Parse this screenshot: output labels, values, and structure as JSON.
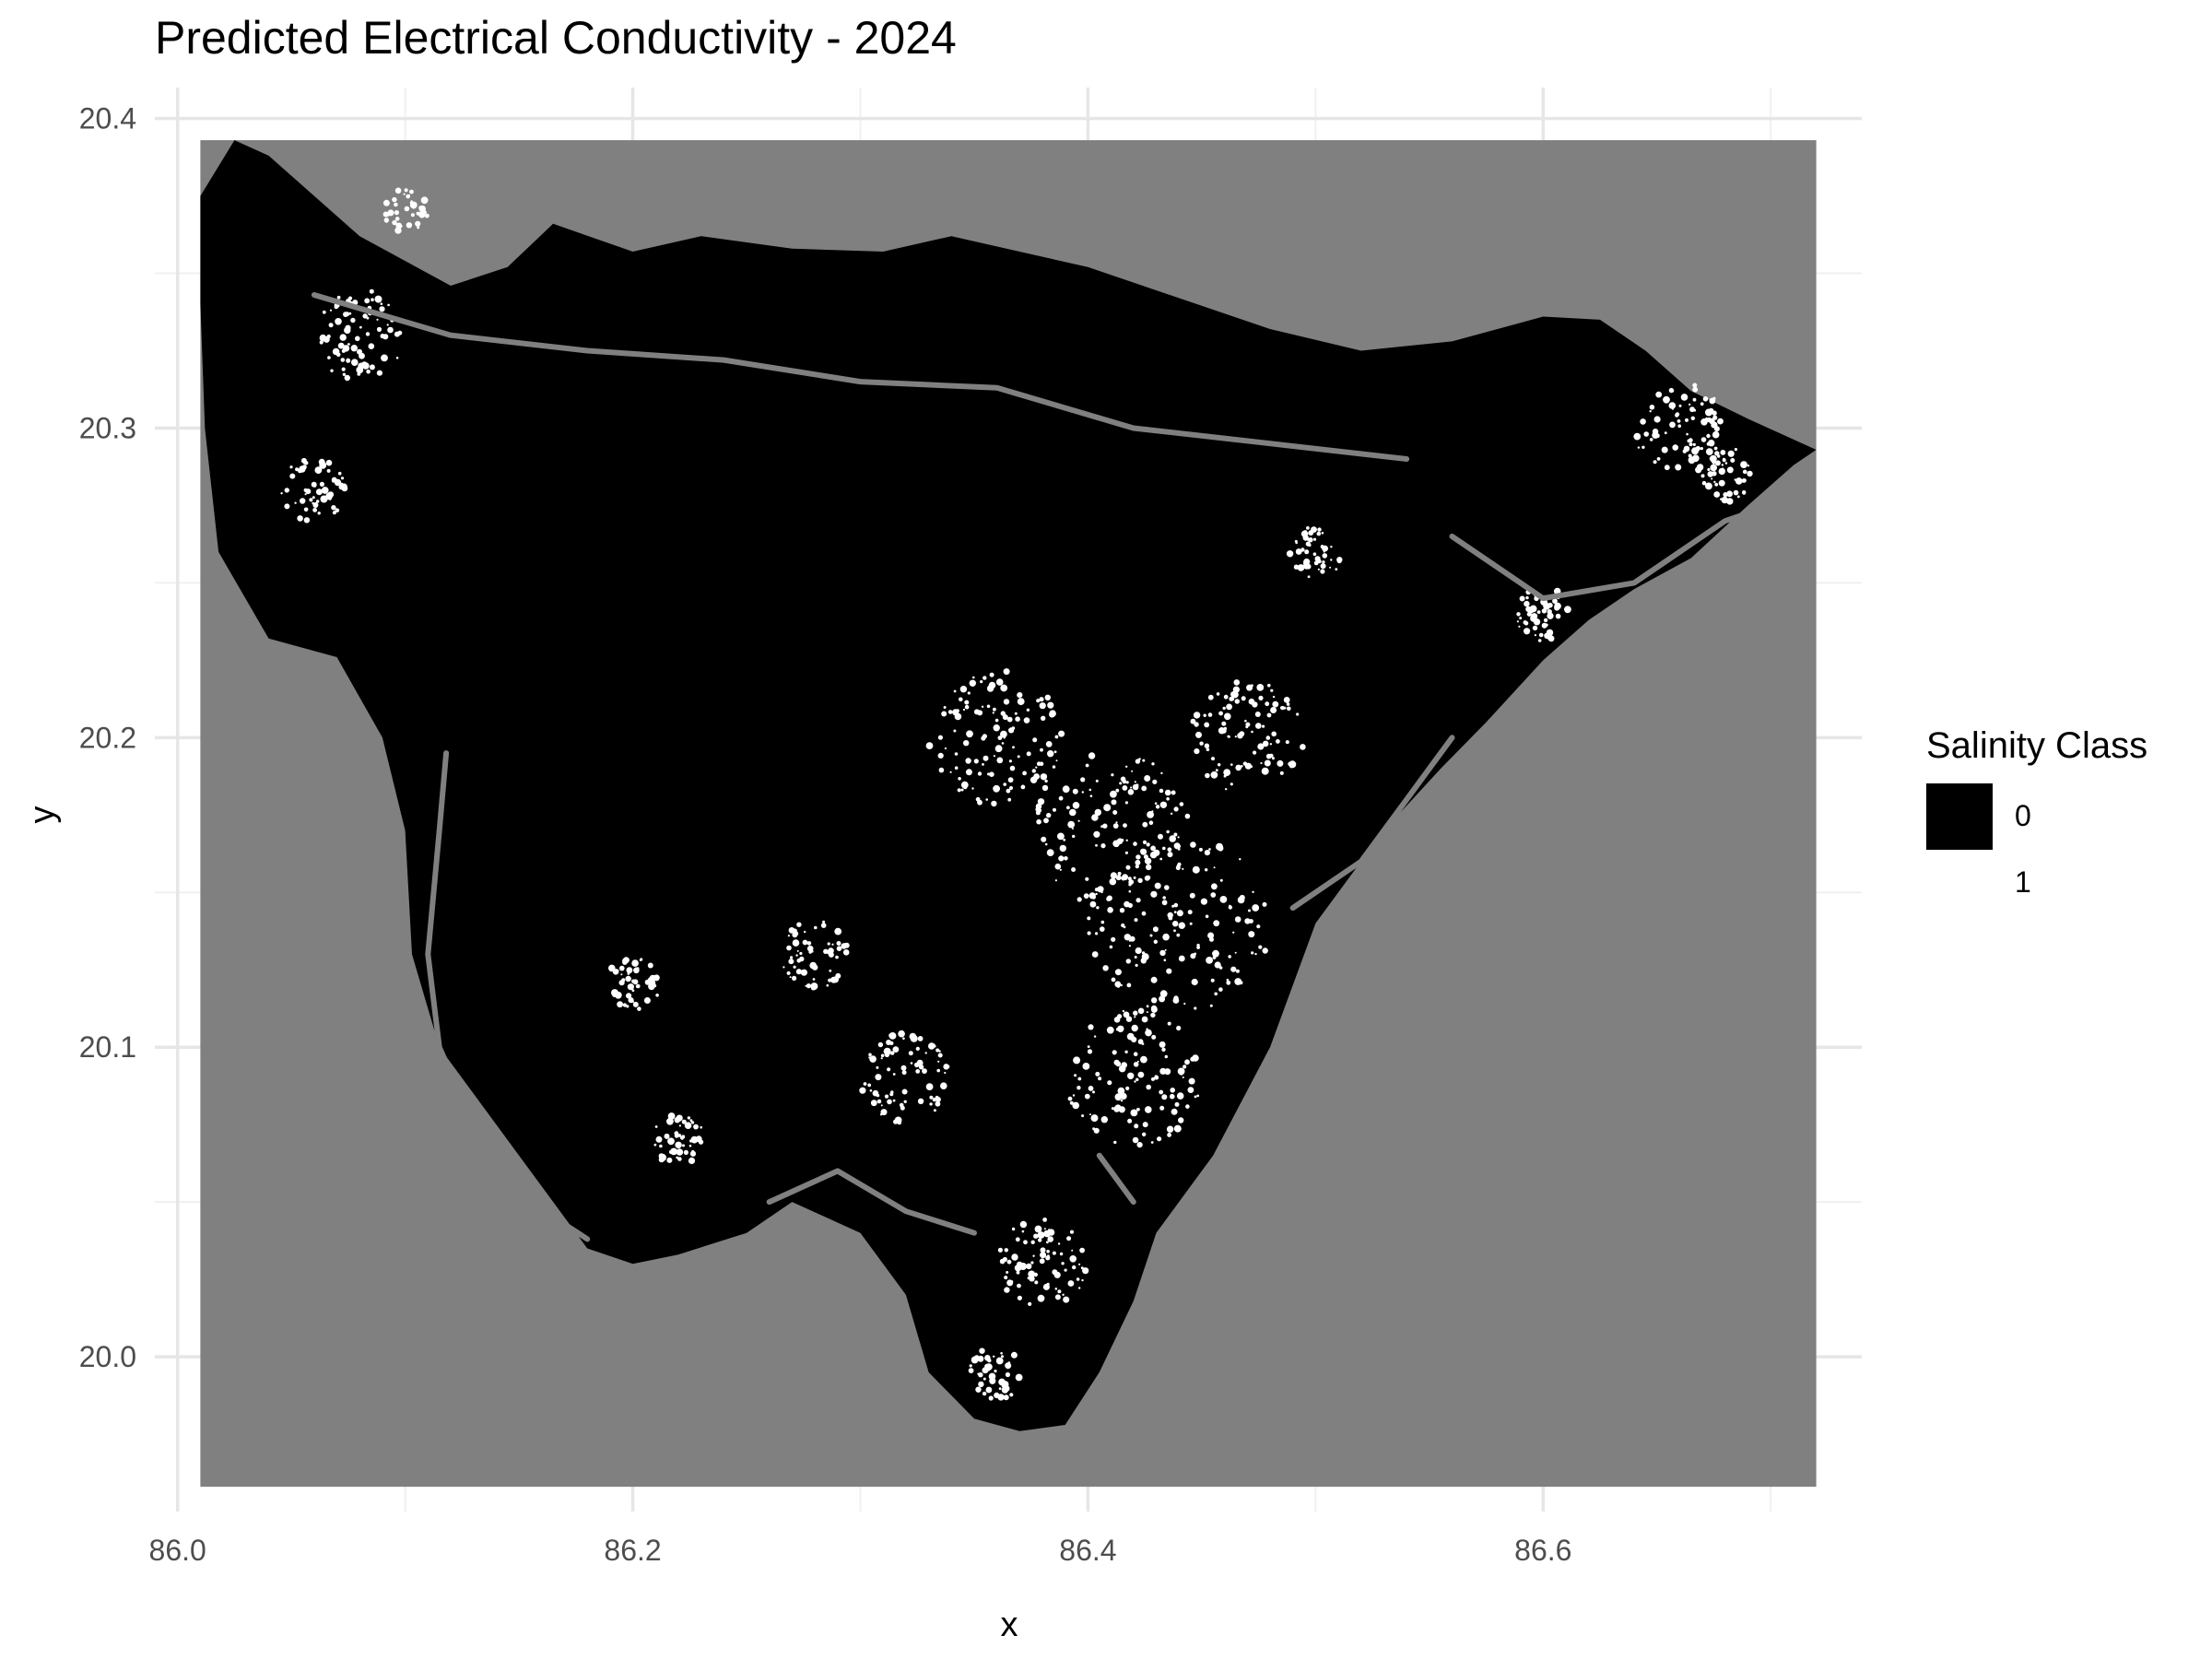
{
  "title": "Predicted Electrical Conductivity - 2024",
  "chart_data": {
    "type": "heatmap",
    "title": "Predicted Electrical Conductivity - 2024",
    "xlabel": "x",
    "ylabel": "y",
    "xlim": [
      85.99,
      86.74
    ],
    "ylim": [
      19.95,
      20.41
    ],
    "raster_extent": {
      "x": [
        86.01,
        86.72
      ],
      "y": [
        19.958,
        20.393
      ]
    },
    "x_ticks": [
      86.0,
      86.2,
      86.4,
      86.6
    ],
    "x_tick_labels": [
      "86.0",
      "86.2",
      "86.4",
      "86.6"
    ],
    "y_ticks": [
      20.0,
      20.1,
      20.2,
      20.3,
      20.4
    ],
    "y_tick_labels": [
      "20.0",
      "20.1",
      "20.2",
      "20.3",
      "20.4"
    ],
    "grid": true,
    "legend": {
      "title": "Salinity Class",
      "position": "right",
      "entries": [
        {
          "label": "0",
          "color": "#000000"
        },
        {
          "label": "1",
          "color": "#ffffff"
        }
      ]
    },
    "background_color": "#808080",
    "land_outline": [
      [
        86.01,
        20.375
      ],
      [
        86.025,
        20.393
      ],
      [
        86.04,
        20.388
      ],
      [
        86.08,
        20.362
      ],
      [
        86.12,
        20.346
      ],
      [
        86.145,
        20.352
      ],
      [
        86.165,
        20.366
      ],
      [
        86.2,
        20.357
      ],
      [
        86.23,
        20.362
      ],
      [
        86.27,
        20.358
      ],
      [
        86.31,
        20.357
      ],
      [
        86.34,
        20.362
      ],
      [
        86.37,
        20.357
      ],
      [
        86.4,
        20.352
      ],
      [
        86.44,
        20.342
      ],
      [
        86.48,
        20.332
      ],
      [
        86.52,
        20.325
      ],
      [
        86.56,
        20.328
      ],
      [
        86.6,
        20.336
      ],
      [
        86.625,
        20.335
      ],
      [
        86.645,
        20.325
      ],
      [
        86.665,
        20.312
      ],
      [
        86.69,
        20.303
      ],
      [
        86.72,
        20.293
      ],
      [
        86.71,
        20.288
      ],
      [
        86.69,
        20.275
      ],
      [
        86.665,
        20.258
      ],
      [
        86.64,
        20.248
      ],
      [
        86.62,
        20.238
      ],
      [
        86.6,
        20.225
      ],
      [
        86.575,
        20.205
      ],
      [
        86.555,
        20.19
      ],
      [
        86.53,
        20.17
      ],
      [
        86.5,
        20.14
      ],
      [
        86.48,
        20.1
      ],
      [
        86.455,
        20.065
      ],
      [
        86.43,
        20.04
      ],
      [
        86.42,
        20.018
      ],
      [
        86.405,
        19.995
      ],
      [
        86.39,
        19.978
      ],
      [
        86.37,
        19.976
      ],
      [
        86.35,
        19.98
      ],
      [
        86.33,
        19.995
      ],
      [
        86.32,
        20.02
      ],
      [
        86.3,
        20.04
      ],
      [
        86.27,
        20.05
      ],
      [
        86.25,
        20.04
      ],
      [
        86.22,
        20.033
      ],
      [
        86.2,
        20.03
      ],
      [
        86.18,
        20.035
      ],
      [
        86.16,
        20.055
      ],
      [
        86.135,
        20.08
      ],
      [
        86.115,
        20.1
      ],
      [
        86.103,
        20.13
      ],
      [
        86.1,
        20.17
      ],
      [
        86.09,
        20.2
      ],
      [
        86.07,
        20.226
      ],
      [
        86.04,
        20.232
      ],
      [
        86.018,
        20.26
      ],
      [
        86.012,
        20.3
      ],
      [
        86.01,
        20.34
      ]
    ],
    "rivers": [
      {
        "points": [
          [
            86.118,
            20.195
          ],
          [
            86.115,
            20.17
          ],
          [
            86.11,
            20.13
          ],
          [
            86.115,
            20.1
          ],
          [
            86.13,
            20.075
          ],
          [
            86.155,
            20.05
          ],
          [
            86.18,
            20.038
          ]
        ]
      },
      {
        "points": [
          [
            86.26,
            20.05
          ],
          [
            86.29,
            20.06
          ],
          [
            86.32,
            20.047
          ],
          [
            86.35,
            20.04
          ]
        ]
      },
      {
        "points": [
          [
            86.06,
            20.343
          ],
          [
            86.12,
            20.33
          ],
          [
            86.18,
            20.325
          ],
          [
            86.24,
            20.322
          ],
          [
            86.3,
            20.315
          ],
          [
            86.36,
            20.313
          ],
          [
            86.42,
            20.3
          ],
          [
            86.48,
            20.295
          ],
          [
            86.54,
            20.29
          ]
        ]
      },
      {
        "points": [
          [
            86.56,
            20.265
          ],
          [
            86.6,
            20.245
          ],
          [
            86.64,
            20.25
          ],
          [
            86.68,
            20.27
          ],
          [
            86.7,
            20.275
          ]
        ]
      },
      {
        "points": [
          [
            86.49,
            20.145
          ],
          [
            86.52,
            20.16
          ],
          [
            86.545,
            20.185
          ],
          [
            86.56,
            20.2
          ]
        ]
      },
      {
        "points": [
          [
            86.405,
            20.065
          ],
          [
            86.42,
            20.05
          ]
        ]
      }
    ],
    "saline_patches": [
      {
        "x": 86.08,
        "y": 20.33,
        "r": 0.02
      },
      {
        "x": 86.06,
        "y": 20.28,
        "r": 0.015
      },
      {
        "x": 86.1,
        "y": 20.37,
        "r": 0.01
      },
      {
        "x": 86.36,
        "y": 20.2,
        "r": 0.03
      },
      {
        "x": 86.41,
        "y": 20.17,
        "r": 0.035
      },
      {
        "x": 86.44,
        "y": 20.14,
        "r": 0.04
      },
      {
        "x": 86.47,
        "y": 20.2,
        "r": 0.025
      },
      {
        "x": 86.42,
        "y": 20.09,
        "r": 0.03
      },
      {
        "x": 86.32,
        "y": 20.09,
        "r": 0.02
      },
      {
        "x": 86.28,
        "y": 20.13,
        "r": 0.015
      },
      {
        "x": 86.38,
        "y": 20.03,
        "r": 0.02
      },
      {
        "x": 86.36,
        "y": 19.995,
        "r": 0.012
      },
      {
        "x": 86.66,
        "y": 20.3,
        "r": 0.02
      },
      {
        "x": 86.68,
        "y": 20.285,
        "r": 0.012
      },
      {
        "x": 86.6,
        "y": 20.24,
        "r": 0.012
      },
      {
        "x": 86.5,
        "y": 20.26,
        "r": 0.012
      },
      {
        "x": 86.2,
        "y": 20.12,
        "r": 0.012
      },
      {
        "x": 86.22,
        "y": 20.07,
        "r": 0.012
      }
    ]
  }
}
